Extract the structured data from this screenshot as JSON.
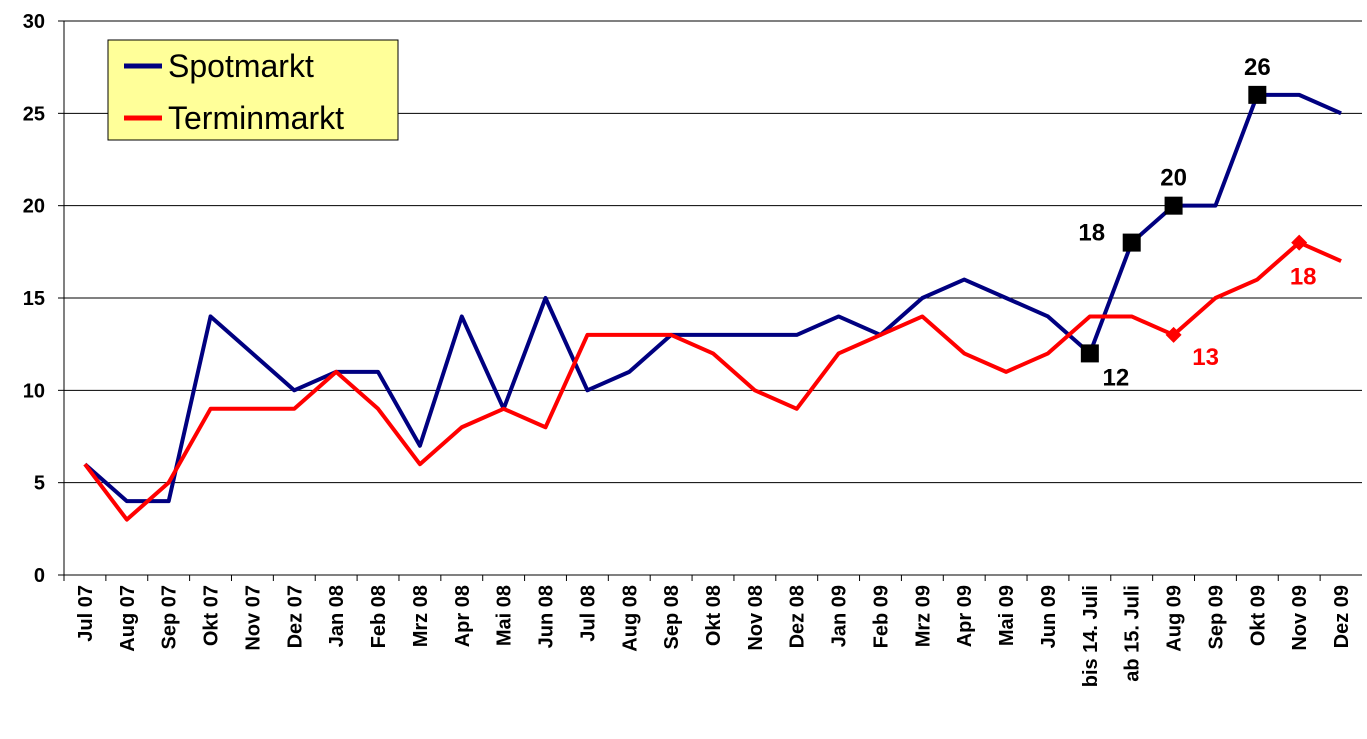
{
  "chart_data": {
    "type": "line",
    "categories": [
      "Jul 07",
      "Aug 07",
      "Sep 07",
      "Okt 07",
      "Nov 07",
      "Dez 07",
      "Jan 08",
      "Feb 08",
      "Mrz 08",
      "Apr 08",
      "Mai 08",
      "Jun 08",
      "Jul 08",
      "Aug 08",
      "Sep 08",
      "Okt 08",
      "Nov 08",
      "Dez 08",
      "Jan 09",
      "Feb 09",
      "Mrz 09",
      "Apr 09",
      "Mai 09",
      "Jun 09",
      "bis 14. Juli",
      "ab 15. Juli",
      "Aug 09",
      "Sep 09",
      "Okt 09",
      "Nov 09",
      "Dez 09"
    ],
    "series": [
      {
        "name": "Spotmarkt",
        "color": "#000080",
        "marker": "square",
        "values": [
          6,
          4,
          4,
          14,
          12,
          10,
          11,
          11,
          7,
          14,
          9,
          15,
          10,
          11,
          13,
          13,
          13,
          13,
          14,
          13,
          15,
          16,
          15,
          14,
          12,
          18,
          20,
          20,
          26,
          26,
          25
        ],
        "value_labels": [
          null,
          null,
          null,
          null,
          null,
          null,
          null,
          null,
          null,
          null,
          null,
          null,
          null,
          null,
          null,
          null,
          null,
          null,
          null,
          null,
          null,
          null,
          null,
          null,
          "12",
          "18",
          "20",
          null,
          "26",
          null,
          null
        ]
      },
      {
        "name": "Terminmarkt",
        "color": "#ff0000",
        "marker": "diamond",
        "values": [
          6,
          3,
          5,
          9,
          9,
          9,
          11,
          9,
          6,
          8,
          9,
          8,
          13,
          13,
          13,
          12,
          10,
          9,
          12,
          13,
          14,
          12,
          11,
          12,
          14,
          14,
          13,
          15,
          16,
          18,
          17
        ],
        "value_labels": [
          null,
          null,
          null,
          null,
          null,
          null,
          null,
          null,
          null,
          null,
          null,
          null,
          null,
          null,
          null,
          null,
          null,
          null,
          null,
          null,
          null,
          null,
          null,
          null,
          null,
          null,
          "13",
          null,
          null,
          "18",
          null
        ]
      }
    ],
    "ylim": [
      0,
      30
    ],
    "yticks": [
      0,
      5,
      10,
      15,
      20,
      25,
      30
    ],
    "grid": true,
    "legend": "top-left"
  }
}
